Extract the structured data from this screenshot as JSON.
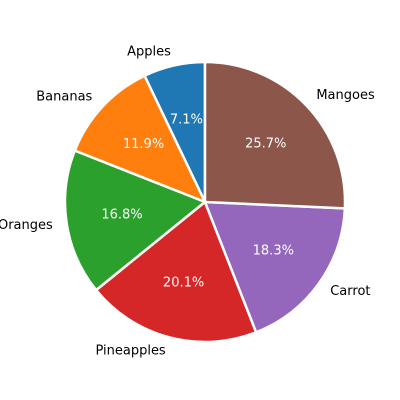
{
  "chart_data": {
    "type": "pie",
    "title": "",
    "start_angle_deg": 90,
    "direction": "counterclockwise",
    "legend": "none",
    "slices": [
      {
        "label": "Apples",
        "value": 7.1,
        "pct_text": "7.1%",
        "color": "#1f77b4"
      },
      {
        "label": "Bananas",
        "value": 11.9,
        "pct_text": "11.9%",
        "color": "#ff7f0e"
      },
      {
        "label": "Oranges",
        "value": 16.8,
        "pct_text": "16.8%",
        "color": "#2ca02c"
      },
      {
        "label": "Pineapples",
        "value": 20.1,
        "pct_text": "20.1%",
        "color": "#d62728"
      },
      {
        "label": "Carrot",
        "value": 18.3,
        "pct_text": "18.3%",
        "color": "#9467bd"
      },
      {
        "label": "Mangoes",
        "value": 25.7,
        "pct_text": "25.7%",
        "color": "#8c564b"
      }
    ]
  }
}
